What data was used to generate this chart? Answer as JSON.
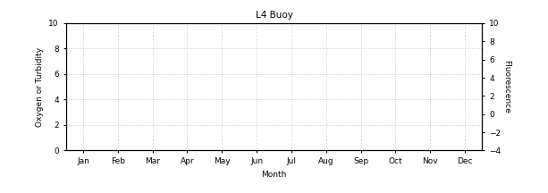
{
  "title": "L4 Buoy",
  "xlabel": "Month",
  "ylabel_left": "Oxygen or Turbidity",
  "ylabel_right": "Fluorescence",
  "x_tick_labels": [
    "Jan",
    "Feb",
    "Mar",
    "Apr",
    "May",
    "Jun",
    "Jul",
    "Aug",
    "Sep",
    "Oct",
    "Nov",
    "Dec"
  ],
  "x_tick_positions": [
    0,
    1,
    2,
    3,
    4,
    5,
    6,
    7,
    8,
    9,
    10,
    11
  ],
  "ylim_left": [
    0,
    10
  ],
  "ylim_right": [
    -4,
    10
  ],
  "yticks_left": [
    0,
    2,
    4,
    6,
    8,
    10
  ],
  "yticks_right": [
    -4,
    -2,
    0,
    2,
    4,
    6,
    8,
    10
  ],
  "grid_color": "#c8c8c8",
  "grid_style": "dotted",
  "background_color": "#ffffff",
  "title_fontsize": 7.5,
  "label_fontsize": 6.5,
  "tick_fontsize": 6.5
}
